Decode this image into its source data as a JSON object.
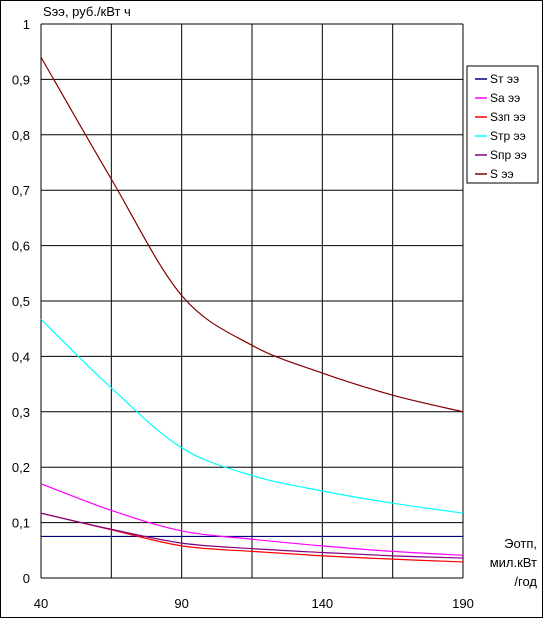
{
  "chart_data": {
    "type": "line",
    "title": "",
    "ylabel": "Sээ, руб./кВт ч",
    "xlabel": "Эотп, мил.кВт /год",
    "xlabel_lines": [
      "Эотп,",
      "мил.кВт",
      "/год"
    ],
    "xlim": [
      40,
      190
    ],
    "ylim": [
      0,
      1
    ],
    "x_ticks": [
      "40",
      "90",
      "140",
      "190"
    ],
    "y_ticks": [
      "0",
      "0,1",
      "0,2",
      "0,3",
      "0,4",
      "0,5",
      "0,6",
      "0,7",
      "0,8",
      "0,9",
      "1"
    ],
    "grid": true,
    "legend_position": "right",
    "x": [
      40,
      65,
      90,
      115,
      140,
      165,
      190
    ],
    "series": [
      {
        "name": "Sт ээ",
        "color": "#000080",
        "values": [
          0.075,
          0.075,
          0.075,
          0.075,
          0.075,
          0.075,
          0.075
        ]
      },
      {
        "name": "Sа ээ",
        "color": "#FF00FF",
        "values": [
          0.17,
          0.122,
          0.085,
          0.07,
          0.058,
          0.048,
          0.041
        ]
      },
      {
        "name": "Sзп ээ",
        "color": "#FF0000",
        "values": [
          0.117,
          0.087,
          0.058,
          0.048,
          0.04,
          0.034,
          0.029
        ]
      },
      {
        "name": "Sтр ээ",
        "color": "#00FFFF",
        "values": [
          0.467,
          0.343,
          0.235,
          0.185,
          0.157,
          0.135,
          0.117
        ]
      },
      {
        "name": "Sпр ээ",
        "color": "#800080",
        "values": [
          0.117,
          0.088,
          0.063,
          0.053,
          0.046,
          0.04,
          0.036
        ]
      },
      {
        "name": "S ээ",
        "color": "#800000",
        "values": [
          0.94,
          0.72,
          0.51,
          0.42,
          0.37,
          0.33,
          0.3
        ]
      }
    ]
  }
}
